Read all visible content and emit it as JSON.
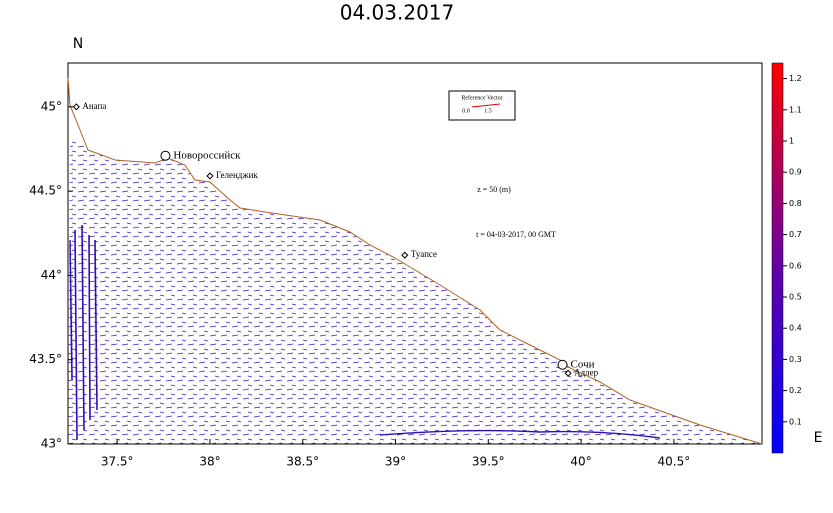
{
  "title": "04.03.2017",
  "map": {
    "xlim": [
      37.235,
      40.975
    ],
    "ylim": [
      43,
      45.26
    ],
    "xticks": [
      {
        "value": 37.5,
        "label": "37.5°"
      },
      {
        "value": 38,
        "label": "38°"
      },
      {
        "value": 38.5,
        "label": "38.5°"
      },
      {
        "value": 39,
        "label": "39°"
      },
      {
        "value": 39.5,
        "label": "39.5°"
      },
      {
        "value": 40,
        "label": "40°"
      },
      {
        "value": 40.5,
        "label": "40.5°"
      }
    ],
    "yticks": [
      {
        "value": 43,
        "label": "43°"
      },
      {
        "value": 43.5,
        "label": "43.5°"
      },
      {
        "value": 44,
        "label": "44°"
      },
      {
        "value": 44.5,
        "label": "44.5°"
      },
      {
        "value": 45,
        "label": "45°"
      }
    ],
    "x_axis_label": "E",
    "y_axis_label": "N",
    "places": [
      {
        "name": "Анапа",
        "lon": 37.28,
        "lat": 45.0,
        "marker": "diamond"
      },
      {
        "name": "Новороссийск",
        "lon": 37.76,
        "lat": 44.71,
        "marker": "circle"
      },
      {
        "name": "Геленджик",
        "lon": 38.0,
        "lat": 44.59,
        "marker": "diamond"
      },
      {
        "name": "Туапсе",
        "lon": 39.05,
        "lat": 44.12,
        "marker": "diamond"
      },
      {
        "name": "Сочи",
        "lon": 39.9,
        "lat": 43.47,
        "marker": "circle"
      },
      {
        "name": "Адлер",
        "lon": 39.93,
        "lat": 43.42,
        "marker": "diamond"
      }
    ],
    "annotations": {
      "depth": "z = 50 (m)",
      "time": "t = 04-03-2017, 00 GMT"
    },
    "reference_vector": {
      "title": "Reference Vector",
      "labels": [
        "0.0",
        "1.5"
      ]
    }
  },
  "colorbar": {
    "lim": [
      0,
      1.25
    ],
    "ticks": [
      0.1,
      0.2,
      0.3,
      0.4,
      0.5,
      0.6,
      0.7,
      0.8,
      0.9,
      1,
      1.1,
      1.2
    ],
    "colors": [
      "#0000ff",
      "#6a00a0",
      "#ff0000"
    ]
  }
}
